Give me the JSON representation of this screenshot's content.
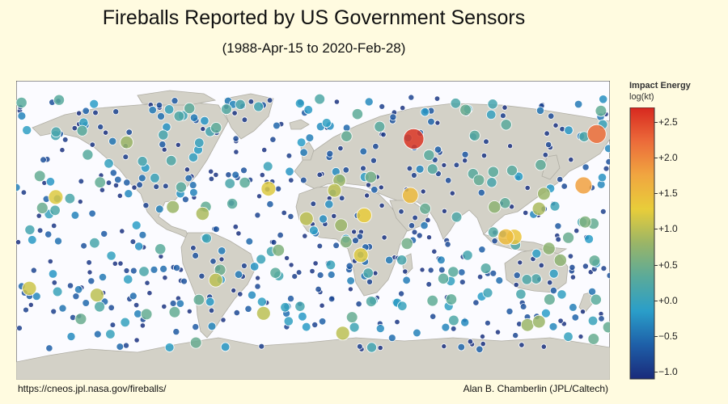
{
  "title": "Fireballs Reported by US Government Sensors",
  "subtitle": "(1988-Apr-15 to 2020-Feb-28)",
  "legend": {
    "title": "Impact Energy",
    "unit": "log(kt)",
    "ticks": [
      "+2.5",
      "+2.0",
      "+1.5",
      "+1.0",
      "+0.5",
      "+0.0",
      "−0.5",
      "−1.0"
    ],
    "range": [
      -1.1,
      2.7
    ],
    "colors": [
      "#1a2a7a",
      "#1e5fa8",
      "#2a9ec9",
      "#5aaa9a",
      "#9ab567",
      "#e8cd3a",
      "#f0a640",
      "#ec6b3a",
      "#d7281f"
    ]
  },
  "footer": {
    "source": "https://cneos.jpl.nasa.gov/fireballs/",
    "credit": "Alan B. Chamberlin (JPL/Caltech)"
  },
  "colors": {
    "ocean": "#fbfbff",
    "land": "#d3d1c7",
    "border": "#b0aea4",
    "background": "#fffbe0"
  },
  "chart_data": {
    "type": "scatter",
    "projection": "equirectangular",
    "x_label": "longitude",
    "y_label": "latitude",
    "xlim": [
      -180,
      180
    ],
    "ylim": [
      -90,
      90
    ],
    "size_variable": "impact_energy_log_kt",
    "color_variable": "impact_energy_log_kt",
    "large_events": [
      {
        "lon": 61,
        "lat": 55,
        "energy": 2.6
      },
      {
        "lon": 172,
        "lat": 58,
        "energy": 2.2
      },
      {
        "lon": 164,
        "lat": 27,
        "energy": 1.8
      },
      {
        "lon": 59,
        "lat": 21,
        "energy": 1.5
      },
      {
        "lon": 31,
        "lat": 9,
        "energy": 1.3
      },
      {
        "lon": 29,
        "lat": -15,
        "energy": 1.2
      },
      {
        "lon": 117,
        "lat": -4,
        "energy": 1.5
      },
      {
        "lon": 122,
        "lat": -4,
        "energy": 1.4
      },
      {
        "lon": -156,
        "lat": 20,
        "energy": 1.2
      },
      {
        "lon": -27,
        "lat": 25,
        "energy": 1.2
      },
      {
        "lon": -4,
        "lat": 7,
        "energy": 1.0
      },
      {
        "lon": 13,
        "lat": 24,
        "energy": 1.0
      },
      {
        "lon": -30,
        "lat": -50,
        "energy": 1.0
      },
      {
        "lon": -59,
        "lat": -30,
        "energy": 1.0
      },
      {
        "lon": -172,
        "lat": -35,
        "energy": 1.1
      },
      {
        "lon": -131,
        "lat": -39,
        "energy": 1.0
      },
      {
        "lon": 137,
        "lat": 13,
        "energy": 0.9
      },
      {
        "lon": 130,
        "lat": -57,
        "energy": 0.8
      },
      {
        "lon": 137,
        "lat": -55,
        "energy": 0.8
      },
      {
        "lon": 18,
        "lat": -62,
        "energy": 1.0
      },
      {
        "lon": 110,
        "lat": 14,
        "energy": 0.7
      },
      {
        "lon": -113,
        "lat": 53,
        "energy": 0.8
      },
      {
        "lon": -21,
        "lat": -12,
        "energy": 0.6
      },
      {
        "lon": 20,
        "lat": -7,
        "energy": 0.6
      },
      {
        "lon": 143,
        "lat": -11,
        "energy": 0.7
      },
      {
        "lon": 17,
        "lat": 3,
        "energy": 0.8
      },
      {
        "lon": 150,
        "lat": -18,
        "energy": 0.7
      },
      {
        "lon": 165,
        "lat": 5,
        "energy": 0.6
      },
      {
        "lon": -85,
        "lat": 14,
        "energy": 0.8
      },
      {
        "lon": -67,
        "lat": 10,
        "energy": 0.9
      },
      {
        "lon": 140,
        "lat": 22,
        "energy": 0.8
      },
      {
        "lon": 170,
        "lat": 4,
        "energy": 0.4
      },
      {
        "lon": 16,
        "lat": 30,
        "energy": 0.8
      },
      {
        "lon": 35,
        "lat": 32,
        "energy": 0.5
      },
      {
        "lon": -80,
        "lat": 26,
        "energy": 0.3
      },
      {
        "lon": -49,
        "lat": 16,
        "energy": 0.3
      },
      {
        "lon": 68,
        "lat": 13,
        "energy": 0.4
      },
      {
        "lon": 57,
        "lat": -8,
        "energy": 0.5
      },
      {
        "lon": 85,
        "lat": -25,
        "energy": 0.3
      },
      {
        "lon": -140,
        "lat": 60,
        "energy": 0.3
      },
      {
        "lon": 97,
        "lat": 34,
        "energy": 0.3
      },
      {
        "lon": 98,
        "lat": 57,
        "energy": 0.3
      },
      {
        "lon": -86,
        "lat": 42,
        "energy": 0.2
      },
      {
        "lon": 4,
        "lat": 79,
        "energy": 0.2
      }
    ]
  }
}
